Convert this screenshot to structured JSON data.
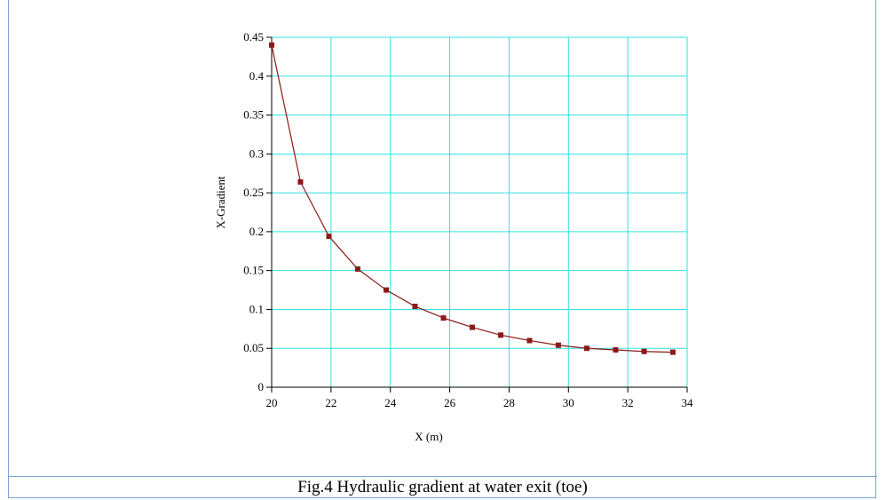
{
  "caption": "Fig.4 Hydraulic gradient at water exit (toe)",
  "chart_data": {
    "type": "line",
    "title": "",
    "xlabel": "X (m)",
    "ylabel": "X-Gradient",
    "xlim": [
      20,
      34
    ],
    "ylim": [
      0,
      0.45
    ],
    "x_ticks": [
      20,
      22,
      24,
      26,
      28,
      30,
      32,
      34
    ],
    "y_ticks": [
      0,
      0.05,
      0.1,
      0.15,
      0.2,
      0.25,
      0.3,
      0.35,
      0.4,
      0.45
    ],
    "x_tick_labels": [
      "20",
      "22",
      "24",
      "26",
      "28",
      "30",
      "32",
      "34"
    ],
    "y_tick_labels": [
      "0",
      "0.05",
      "0.1",
      "0.15",
      "0.2",
      "0.25",
      "0.3",
      "0.35",
      "0.4",
      "0.45"
    ],
    "grid": true,
    "grid_color": "#33e0e0",
    "series": [
      {
        "color": "#8b1a1a",
        "marker": "square",
        "x": [
          20.0,
          20.97,
          21.93,
          22.9,
          23.86,
          24.83,
          25.79,
          26.76,
          27.72,
          28.69,
          29.66,
          30.62,
          31.59,
          32.55,
          33.52
        ],
        "y": [
          0.44,
          0.264,
          0.194,
          0.152,
          0.125,
          0.104,
          0.089,
          0.077,
          0.067,
          0.06,
          0.054,
          0.05,
          0.048,
          0.046,
          0.045
        ]
      }
    ]
  }
}
